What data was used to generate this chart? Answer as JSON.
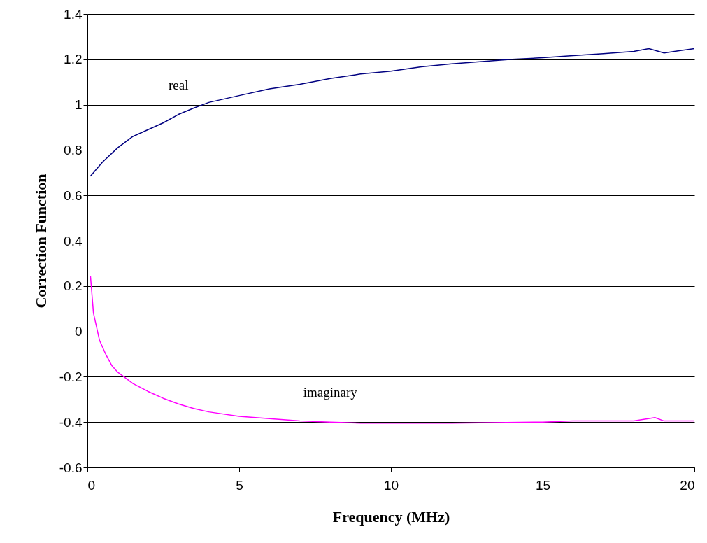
{
  "chart_data": {
    "type": "line",
    "xlabel": "Frequency (MHz)",
    "ylabel": "Correction Function",
    "xlim": [
      0,
      20
    ],
    "xticks": [
      0,
      5,
      10,
      15,
      20
    ],
    "ylim": [
      -0.6,
      1.4
    ],
    "yticks": [
      -0.6,
      -0.4,
      -0.2,
      {
        "value": 0,
        "label": "0"
      },
      0.2,
      0.4,
      0.6,
      0.8,
      {
        "value": 1,
        "label": "1"
      },
      1.2,
      1.4
    ],
    "grid": "y",
    "marker": "none",
    "line_style": "solid",
    "series": [
      {
        "name": "real",
        "color": "#000080",
        "x": [
          0.1,
          0.5,
          1,
          1.5,
          2,
          2.5,
          3,
          3.5,
          4,
          5,
          6,
          7,
          8,
          9,
          10,
          11,
          12,
          13,
          14,
          15,
          16,
          17,
          18,
          18.5,
          19,
          19.5,
          20
        ],
        "values": [
          0.685,
          0.747,
          0.81,
          0.86,
          0.89,
          0.92,
          0.957,
          0.985,
          1.01,
          1.04,
          1.07,
          1.09,
          1.115,
          1.135,
          1.148,
          1.167,
          1.18,
          1.19,
          1.2,
          1.207,
          1.216,
          1.225,
          1.235,
          1.247,
          1.228,
          1.238,
          1.247
        ]
      },
      {
        "name": "imaginary",
        "color": "#ff00ff",
        "x": [
          0.1,
          0.2,
          0.4,
          0.6,
          0.8,
          1,
          1.5,
          2,
          2.5,
          3,
          3.5,
          4,
          5,
          6,
          7,
          8,
          9,
          10,
          12,
          15,
          16,
          18,
          18.7,
          19,
          20
        ],
        "values": [
          0.245,
          0.08,
          -0.04,
          -0.1,
          -0.15,
          -0.18,
          -0.23,
          -0.265,
          -0.295,
          -0.32,
          -0.34,
          -0.355,
          -0.375,
          -0.385,
          -0.395,
          -0.4,
          -0.405,
          -0.405,
          -0.405,
          -0.4,
          -0.395,
          -0.395,
          -0.38,
          -0.395,
          -0.395
        ]
      }
    ]
  }
}
